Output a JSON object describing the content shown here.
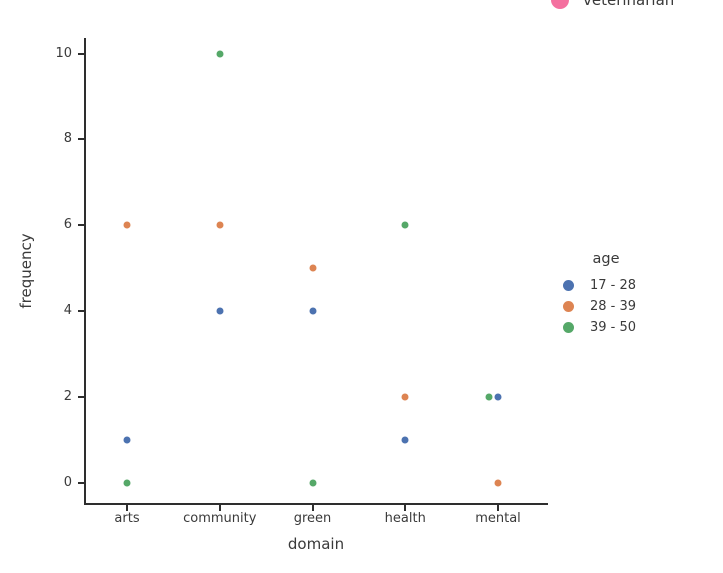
{
  "truncated_legend": {
    "label": "veterinarian",
    "color": "#f4709f"
  },
  "chart_data": {
    "type": "scatter",
    "title": "",
    "xlabel": "domain",
    "ylabel": "frequency",
    "categories": [
      "arts",
      "community",
      "green",
      "health",
      "mental"
    ],
    "series": [
      {
        "name": "17 - 28",
        "color": "#4c72b0",
        "values": [
          1,
          4,
          4,
          1,
          2
        ]
      },
      {
        "name": "28 - 39",
        "color": "#dd8452",
        "values": [
          6,
          6,
          5,
          2,
          0
        ]
      },
      {
        "name": "39 - 50",
        "color": "#55a868",
        "values": [
          0,
          10,
          0,
          6,
          2
        ]
      }
    ],
    "ylim": [
      0,
      10
    ],
    "yticks": [
      0,
      2,
      4,
      6,
      8,
      10
    ],
    "legend_title": "age",
    "legend_position": "right",
    "grid": false,
    "marker": "circle"
  }
}
